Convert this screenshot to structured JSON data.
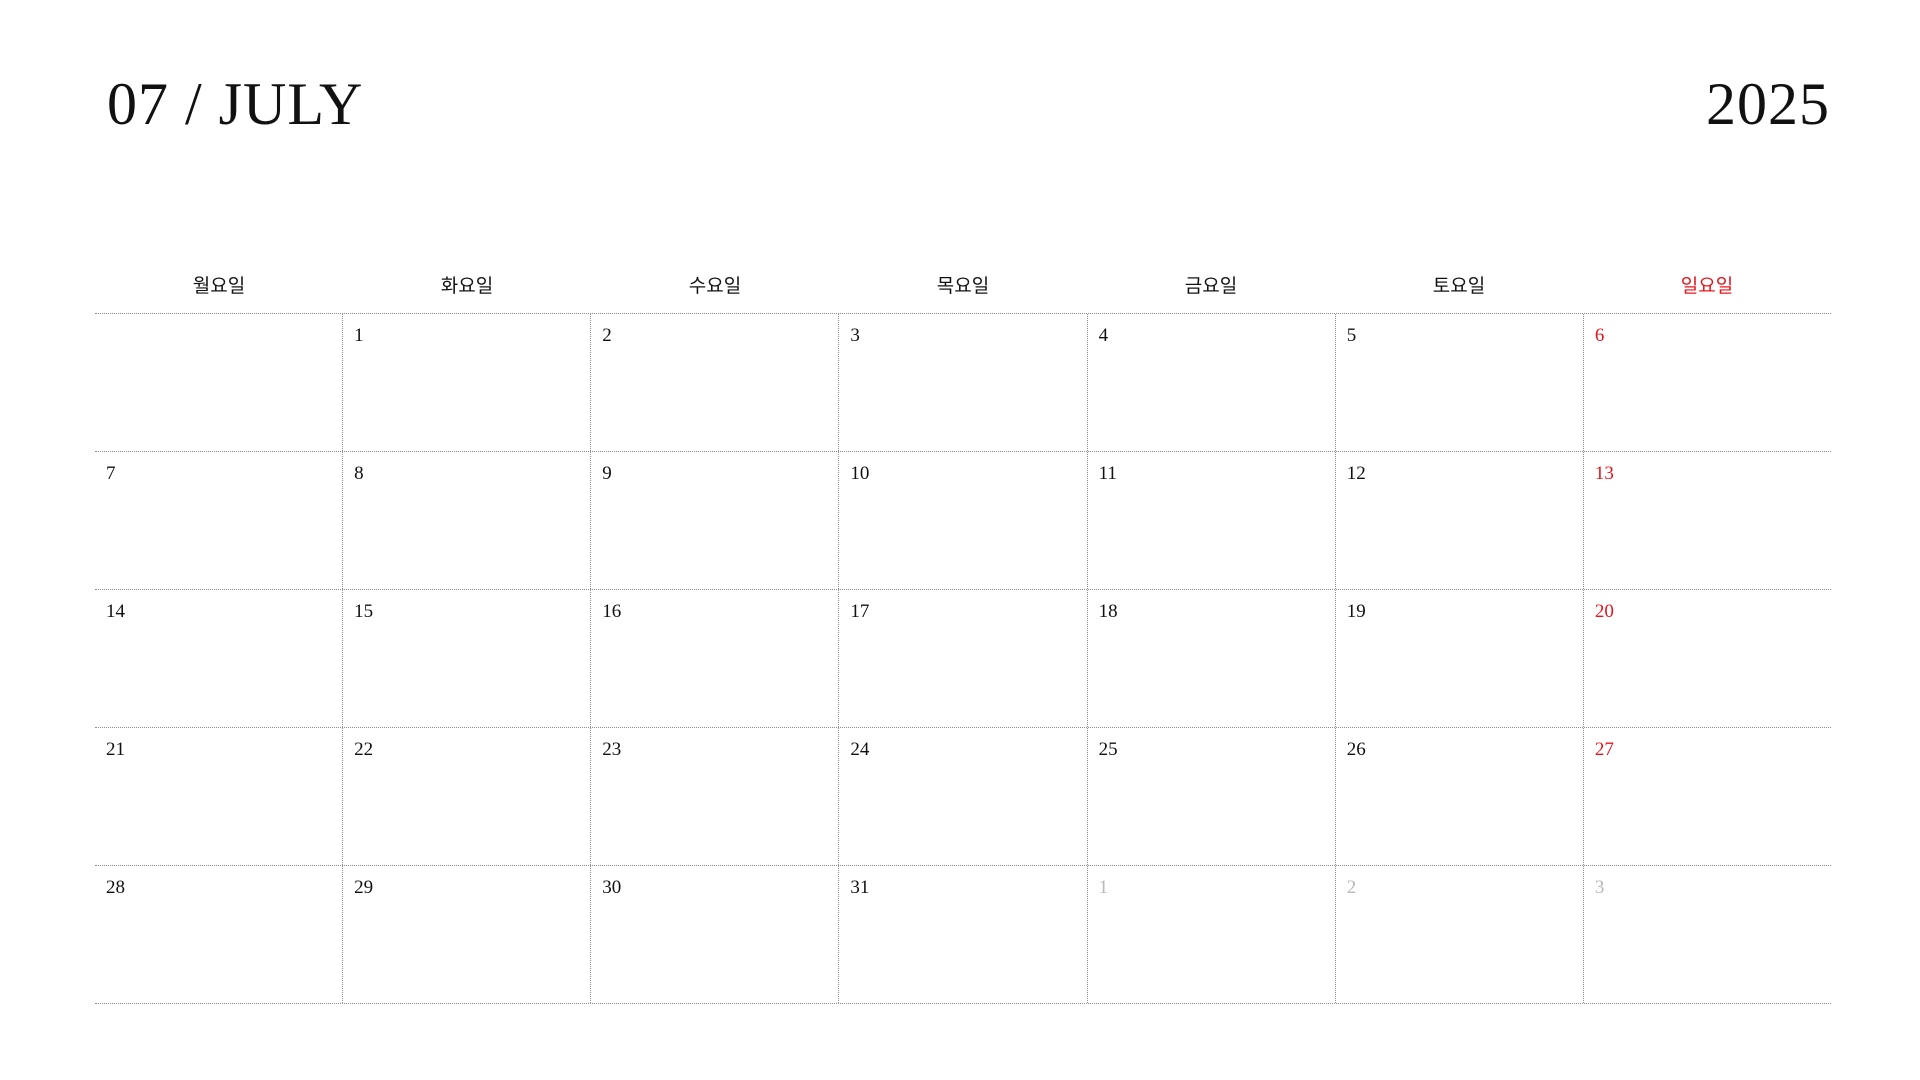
{
  "header": {
    "month_label": "07 / JULY",
    "year_label": "2025"
  },
  "colors": {
    "sunday": "#e8141c",
    "text": "#111111",
    "other_month": "#b8b8b8",
    "gridline": "#8a8a8a"
  },
  "weekdays": [
    "월요일",
    "화요일",
    "수요일",
    "목요일",
    "금요일",
    "토요일",
    "일요일"
  ],
  "weeks": [
    [
      "",
      "1",
      "2",
      "3",
      "4",
      "5",
      "6"
    ],
    [
      "7",
      "8",
      "9",
      "10",
      "11",
      "12",
      "13"
    ],
    [
      "14",
      "15",
      "16",
      "17",
      "18",
      "19",
      "20"
    ],
    [
      "21",
      "22",
      "23",
      "24",
      "25",
      "26",
      "27"
    ],
    [
      "28",
      "29",
      "30",
      "31",
      "1",
      "2",
      "3"
    ]
  ],
  "other_month_days": {
    "week_index": 4,
    "from_column": 4
  }
}
